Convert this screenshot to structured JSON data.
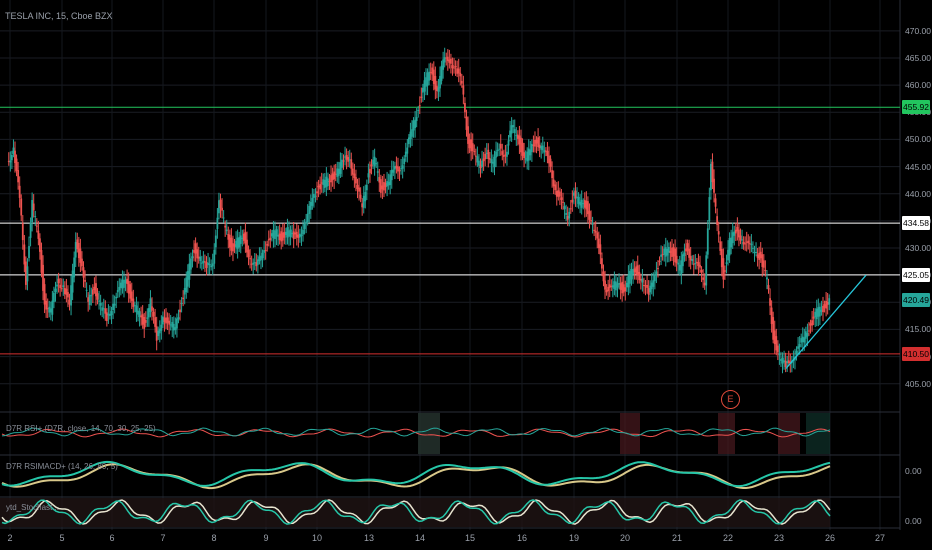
{
  "title": "TESLA INC, 15, Cboe BZX",
  "y_ticks": [
    "470.00",
    "465.00",
    "460.00",
    "455.00",
    "450.00",
    "445.00",
    "440.00",
    "435.00",
    "430.00",
    "425.00",
    "420.00",
    "415.00",
    "410.00",
    "405.00"
  ],
  "x_ticks": [
    "2",
    "5",
    "6",
    "7",
    "8",
    "9",
    "10",
    "13",
    "14",
    "15",
    "16",
    "19",
    "20",
    "21",
    "22",
    "23",
    "26",
    "27"
  ],
  "badges": [
    {
      "value": "455.92",
      "color": "#22c55e"
    },
    {
      "value": "434.58",
      "color": "#ffffff"
    },
    {
      "value": "425.05",
      "color": "#ffffff"
    },
    {
      "value": "420.49",
      "color": "#26a69a"
    },
    {
      "value": "410.50",
      "color": "#d32f2f"
    }
  ],
  "earnings_marker": "E",
  "indicators": {
    "rsi_label": "D7R RSI+ (D7R, close, 14, 70, 30, 25, 25)",
    "macd_label": "D7R RSIMACD+ (14, 26, 80, 5)",
    "stoch_label": "ytd_Stochast...",
    "macd_zero": "0.00",
    "stoch_zero": "0.00"
  },
  "chart_data": {
    "type": "candlestick",
    "title": "TESLA INC, 15, Cboe BZX",
    "ylim": [
      402,
      472
    ],
    "y_ticks": [
      405,
      410,
      415,
      420,
      425,
      430,
      435,
      440,
      445,
      450,
      455,
      460,
      465,
      470
    ],
    "x_ticks": [
      "2",
      "5",
      "6",
      "7",
      "8",
      "9",
      "10",
      "13",
      "14",
      "15",
      "16",
      "19",
      "20",
      "21",
      "22",
      "23",
      "26",
      "27"
    ],
    "horizontal_levels": [
      {
        "value": 455.92,
        "color": "#22c55e"
      },
      {
        "value": 434.58,
        "color": "#ffffff"
      },
      {
        "value": 425.05,
        "color": "#ffffff"
      },
      {
        "value": 410.5,
        "color": "#d32f2f"
      }
    ],
    "last_price": 420.49,
    "trendline": {
      "from": [
        25.0,
        407.8
      ],
      "to": [
        27.0,
        425.0
      ],
      "color": "#26c6da"
    },
    "price_path": [
      [
        0.0,
        446
      ],
      [
        0.15,
        448
      ],
      [
        0.3,
        439
      ],
      [
        0.5,
        424
      ],
      [
        0.7,
        438
      ],
      [
        0.9,
        432
      ],
      [
        1.2,
        420
      ],
      [
        1.4,
        418
      ],
      [
        1.6,
        424
      ],
      [
        1.8,
        423
      ],
      [
        2.0,
        419
      ],
      [
        2.2,
        432
      ],
      [
        2.4,
        426
      ],
      [
        2.6,
        420
      ],
      [
        2.8,
        423
      ],
      [
        3.0,
        419
      ],
      [
        3.2,
        417
      ],
      [
        3.4,
        420
      ],
      [
        3.6,
        422
      ],
      [
        3.8,
        425
      ],
      [
        4.0,
        420
      ],
      [
        4.2,
        418
      ],
      [
        4.4,
        416
      ],
      [
        4.6,
        420
      ],
      [
        4.7,
        413
      ],
      [
        4.8,
        418
      ],
      [
        5.0,
        415
      ],
      [
        5.2,
        416
      ],
      [
        5.4,
        420
      ],
      [
        5.6,
        425
      ],
      [
        5.8,
        430
      ],
      [
        6.0,
        428
      ],
      [
        6.2,
        426
      ],
      [
        6.4,
        428
      ],
      [
        6.6,
        438
      ],
      [
        6.8,
        434
      ],
      [
        7.0,
        430
      ],
      [
        7.2,
        431
      ],
      [
        7.4,
        432
      ],
      [
        7.6,
        428
      ],
      [
        7.8,
        426
      ],
      [
        8.0,
        430
      ],
      [
        8.2,
        431
      ],
      [
        8.4,
        433
      ],
      [
        8.6,
        432
      ],
      [
        8.8,
        433
      ],
      [
        9.0,
        432
      ],
      [
        9.2,
        433
      ],
      [
        9.4,
        434
      ],
      [
        9.6,
        440
      ],
      [
        9.8,
        441
      ],
      [
        10.0,
        442
      ],
      [
        10.2,
        443
      ],
      [
        10.4,
        444
      ],
      [
        10.6,
        446
      ],
      [
        10.8,
        447
      ],
      [
        11.0,
        441
      ],
      [
        11.2,
        438
      ],
      [
        11.4,
        444
      ],
      [
        11.6,
        446
      ],
      [
        11.8,
        441
      ],
      [
        12.0,
        442
      ],
      [
        12.2,
        444
      ],
      [
        12.4,
        445
      ],
      [
        12.6,
        447
      ],
      [
        12.8,
        452
      ],
      [
        13.0,
        456
      ],
      [
        13.2,
        460
      ],
      [
        13.4,
        463
      ],
      [
        13.6,
        459
      ],
      [
        13.8,
        464
      ],
      [
        14.0,
        465
      ],
      [
        14.2,
        463
      ],
      [
        14.4,
        460
      ],
      [
        14.6,
        450
      ],
      [
        14.8,
        447
      ],
      [
        15.0,
        445
      ],
      [
        15.2,
        448
      ],
      [
        15.4,
        445
      ],
      [
        15.6,
        449
      ],
      [
        15.8,
        447
      ],
      [
        16.0,
        452
      ],
      [
        16.2,
        451
      ],
      [
        16.4,
        446
      ],
      [
        16.6,
        448
      ],
      [
        16.8,
        450
      ],
      [
        17.0,
        448
      ],
      [
        17.2,
        446
      ],
      [
        17.4,
        441
      ],
      [
        17.6,
        438
      ],
      [
        17.8,
        436
      ],
      [
        18.0,
        440
      ],
      [
        18.2,
        438
      ],
      [
        18.4,
        438
      ],
      [
        18.6,
        434
      ],
      [
        18.8,
        430
      ],
      [
        19.0,
        423
      ],
      [
        19.2,
        422
      ],
      [
        19.4,
        424
      ],
      [
        19.6,
        422
      ],
      [
        19.8,
        425
      ],
      [
        20.0,
        426
      ],
      [
        20.2,
        424
      ],
      [
        20.4,
        421
      ],
      [
        20.6,
        426
      ],
      [
        20.8,
        428
      ],
      [
        21.0,
        430
      ],
      [
        21.2,
        429
      ],
      [
        21.4,
        426
      ],
      [
        21.6,
        430
      ],
      [
        21.8,
        428
      ],
      [
        22.0,
        426
      ],
      [
        22.2,
        424
      ],
      [
        22.4,
        445
      ],
      [
        22.6,
        434
      ],
      [
        22.8,
        425
      ],
      [
        23.0,
        431
      ],
      [
        23.2,
        433
      ],
      [
        23.4,
        432
      ],
      [
        23.6,
        430
      ],
      [
        23.8,
        430
      ],
      [
        24.0,
        428
      ],
      [
        24.2,
        424
      ],
      [
        24.4,
        414
      ],
      [
        24.6,
        410
      ],
      [
        24.8,
        408
      ],
      [
        25.0,
        410
      ],
      [
        25.2,
        411
      ],
      [
        25.4,
        414
      ],
      [
        25.6,
        416
      ],
      [
        25.8,
        418
      ],
      [
        26.0,
        419
      ],
      [
        26.2,
        420.49
      ]
    ]
  }
}
